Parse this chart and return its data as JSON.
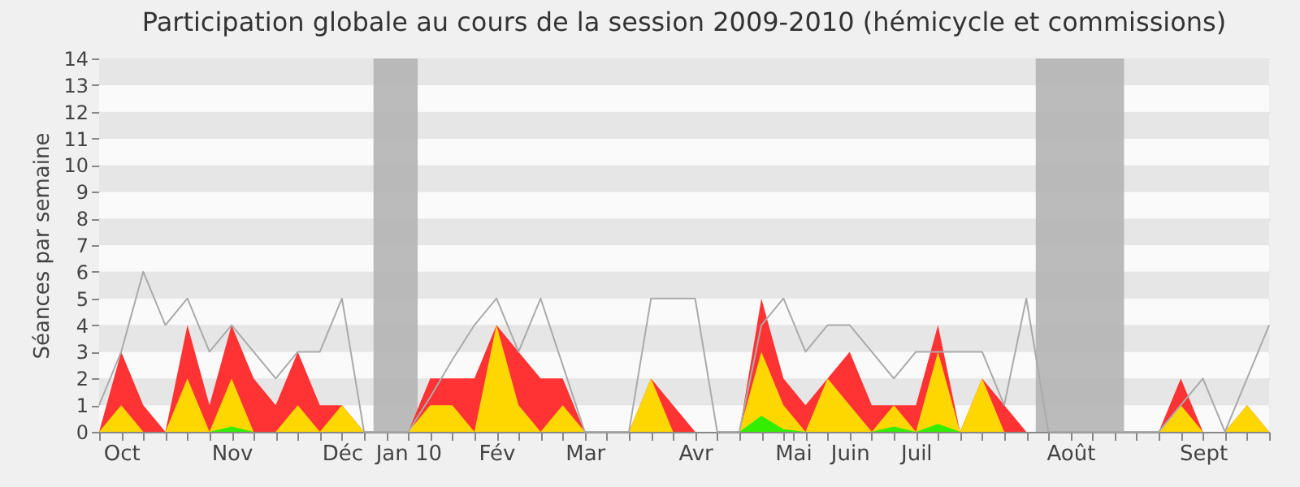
{
  "chart_data": {
    "type": "area",
    "title": "Participation globale au cours de la session 2009-2010 (hémicycle et commissions)",
    "ylabel": "Séances par semaine",
    "x": [
      "2009-09-28",
      "2009-10-05",
      "2009-10-12",
      "2009-10-19",
      "2009-10-26",
      "2009-11-02",
      "2009-11-09",
      "2009-11-16",
      "2009-11-23",
      "2009-11-30",
      "2009-12-07",
      "2009-12-14",
      "2009-12-21",
      "2009-12-28",
      "2010-01-04",
      "2010-01-11",
      "2010-01-18",
      "2010-01-25",
      "2010-02-01",
      "2010-02-08",
      "2010-02-15",
      "2010-02-22",
      "2010-03-01",
      "2010-03-08",
      "2010-03-15",
      "2010-03-22",
      "2010-03-29",
      "2010-04-05",
      "2010-04-12",
      "2010-04-19",
      "2010-04-26",
      "2010-05-03",
      "2010-05-10",
      "2010-05-17",
      "2010-05-24",
      "2010-05-31",
      "2010-06-07",
      "2010-06-14",
      "2010-06-21",
      "2010-06-28",
      "2010-07-05",
      "2010-07-12",
      "2010-07-19",
      "2010-07-26",
      "2010-08-02",
      "2010-08-09",
      "2010-08-16",
      "2010-08-23",
      "2010-08-30",
      "2010-09-06",
      "2010-09-13",
      "2010-09-20",
      "2010-09-27",
      "2010-10-04"
    ],
    "xlim": [
      "2009-09-28",
      "2010-10-04"
    ],
    "xticks": [
      {
        "value": "2009-09-28",
        "label": null
      },
      {
        "value": "2009-10-05",
        "label": "Oct"
      },
      {
        "value": "2009-10-12",
        "label": null
      },
      {
        "value": "2009-10-19",
        "label": null
      },
      {
        "value": "2009-10-26",
        "label": null
      },
      {
        "value": "2009-11-02",
        "label": null
      },
      {
        "value": "2009-11-09",
        "label": "Nov"
      },
      {
        "value": "2009-11-16",
        "label": null
      },
      {
        "value": "2009-11-23",
        "label": null
      },
      {
        "value": "2009-11-30",
        "label": null
      },
      {
        "value": "2009-12-07",
        "label": null
      },
      {
        "value": "2009-12-14",
        "label": "Déc"
      },
      {
        "value": "2009-12-21",
        "label": null
      },
      {
        "value": "2009-12-28",
        "label": null
      },
      {
        "value": "2010-01-04",
        "label": "Jan 10"
      },
      {
        "value": "2010-01-11",
        "label": null
      },
      {
        "value": "2010-01-18",
        "label": null
      },
      {
        "value": "2010-01-25",
        "label": null
      },
      {
        "value": "2010-02-01",
        "label": "Fév"
      },
      {
        "value": "2010-02-08",
        "label": null
      },
      {
        "value": "2010-02-22",
        "label": null
      },
      {
        "value": "2010-02-15",
        "label": null
      },
      {
        "value": "2010-03-01",
        "label": "Mar"
      },
      {
        "value": "2010-03-08",
        "label": null
      },
      {
        "value": "2010-03-15",
        "label": null
      },
      {
        "value": "2010-03-22",
        "label": null
      },
      {
        "value": "2010-03-29",
        "label": null
      },
      {
        "value": "2010-04-05",
        "label": "Avr"
      },
      {
        "value": "2010-04-12",
        "label": null
      },
      {
        "value": "2010-04-19",
        "label": null
      },
      {
        "value": "2010-04-26",
        "label": null
      },
      {
        "value": "2010-05-03",
        "label": null
      },
      {
        "value": "2010-05-06",
        "label": "Mai"
      },
      {
        "value": "2010-05-10",
        "label": null
      },
      {
        "value": "2010-05-17",
        "label": null
      },
      {
        "value": "2010-05-24",
        "label": "Juin"
      },
      {
        "value": "2010-05-31",
        "label": null
      },
      {
        "value": "2010-06-07",
        "label": null
      },
      {
        "value": "2010-06-14",
        "label": "Juil"
      },
      {
        "value": "2010-06-21",
        "label": null
      },
      {
        "value": "2010-06-28",
        "label": null
      },
      {
        "value": "2010-07-05",
        "label": null
      },
      {
        "value": "2010-07-12",
        "label": null
      },
      {
        "value": "2010-07-19",
        "label": null
      },
      {
        "value": "2010-07-26",
        "label": null
      },
      {
        "value": "2010-08-02",
        "label": "Août"
      },
      {
        "value": "2010-08-09",
        "label": null
      },
      {
        "value": "2010-08-16",
        "label": null
      },
      {
        "value": "2010-08-23",
        "label": null
      },
      {
        "value": "2010-08-30",
        "label": null
      },
      {
        "value": "2010-09-06",
        "label": null
      },
      {
        "value": "2010-09-13",
        "label": "Sept"
      },
      {
        "value": "2010-09-20",
        "label": null
      },
      {
        "value": "2010-09-27",
        "label": null
      },
      {
        "value": "2010-10-04",
        "label": null
      }
    ],
    "ylim": [
      0,
      14
    ],
    "yticks": [
      0,
      1,
      2,
      3,
      4,
      5,
      6,
      7,
      8,
      9,
      10,
      11,
      12,
      13,
      14
    ],
    "grid": "y",
    "bands": [
      {
        "axis": "x",
        "from": "2009-12-24",
        "to": "2010-01-07",
        "color": "#b4b4b4"
      },
      {
        "axis": "x",
        "from": "2010-07-22",
        "to": "2010-08-19",
        "color": "#b4b4b4"
      }
    ],
    "series": [
      {
        "color": "#ff3333",
        "values": [
          0,
          3,
          1,
          0,
          4,
          1,
          4,
          2,
          1,
          3,
          1,
          1,
          0,
          0,
          0,
          2,
          2,
          2,
          4,
          3,
          2,
          2,
          0,
          0,
          0,
          2,
          1,
          0,
          0,
          0,
          5,
          2,
          1,
          2,
          3,
          1,
          1,
          1,
          4,
          0,
          2,
          1,
          0,
          0,
          0,
          0,
          0,
          0,
          0,
          2,
          0,
          0,
          1,
          0
        ]
      },
      {
        "color": "#ffd700",
        "values": [
          0,
          1,
          0,
          0,
          2,
          0,
          2,
          0,
          0,
          1,
          0,
          1,
          0,
          0,
          0,
          1,
          1,
          0,
          4,
          1,
          0,
          1,
          0,
          0,
          0,
          2,
          0,
          0,
          0,
          0,
          3,
          1,
          0,
          2,
          1,
          0,
          1,
          0,
          3,
          0,
          2,
          0,
          0,
          0,
          0,
          0,
          0,
          0,
          0,
          1,
          0,
          0,
          1,
          0
        ]
      },
      {
        "color": "#33ee00",
        "values": [
          0,
          0,
          0,
          0,
          0,
          0,
          0.2,
          0,
          0,
          0,
          0,
          0,
          0,
          0,
          0,
          0,
          0,
          0,
          0,
          0,
          0,
          0,
          0,
          0,
          0,
          0,
          0,
          0,
          0,
          0,
          0.6,
          0.1,
          0,
          0,
          0,
          0,
          0.2,
          0,
          0.3,
          0,
          0,
          0,
          0,
          0,
          0,
          0,
          0,
          0,
          0,
          0,
          0,
          0,
          0,
          0
        ]
      },
      {
        "type": "line",
        "color": "#aaaaaa",
        "values": [
          1,
          3,
          6,
          4,
          5,
          3,
          4,
          3,
          2,
          3,
          3,
          5,
          0,
          0,
          0,
          1.3,
          2.7,
          4,
          5,
          3,
          5,
          2.5,
          0,
          0,
          0,
          5,
          5,
          5,
          0,
          0,
          4,
          5,
          3,
          4,
          4,
          3,
          2,
          3,
          3,
          3,
          3,
          1,
          5,
          0,
          0,
          0,
          0,
          0,
          0,
          1,
          2,
          0,
          2,
          4
        ]
      }
    ]
  }
}
